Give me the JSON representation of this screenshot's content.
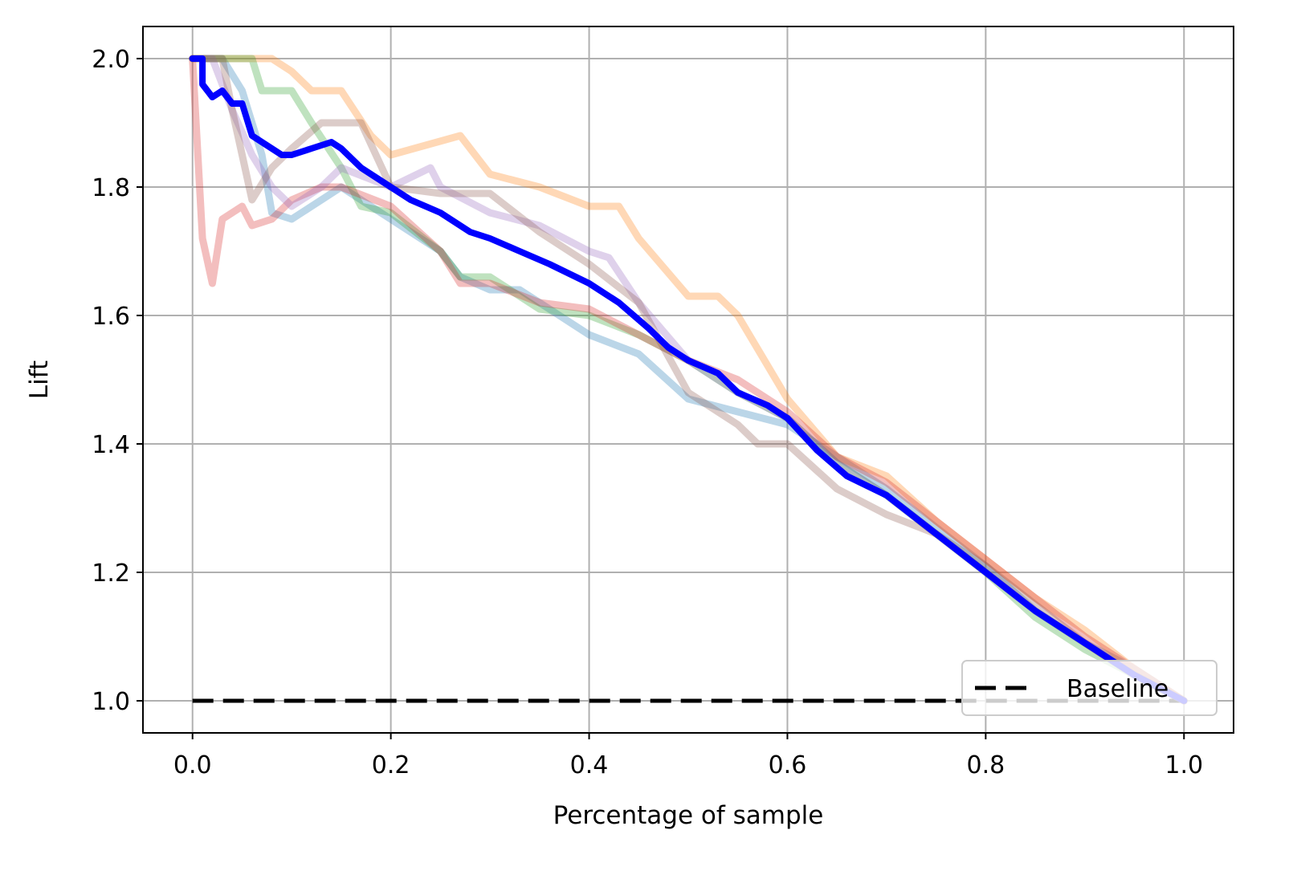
{
  "chart_data": {
    "type": "line",
    "title": "",
    "xlabel": "Percentage of sample",
    "ylabel": "Lift",
    "xlim": [
      -0.05,
      1.05
    ],
    "ylim": [
      0.95,
      2.05
    ],
    "xticks": [
      0.0,
      0.2,
      0.4,
      0.6,
      0.8,
      1.0
    ],
    "xtick_labels": [
      "0.0",
      "0.2",
      "0.4",
      "0.6",
      "0.8",
      "1.0"
    ],
    "yticks": [
      1.0,
      1.2,
      1.4,
      1.6,
      1.8,
      2.0
    ],
    "ytick_labels": [
      "1.0",
      "1.2",
      "1.4",
      "1.6",
      "1.8",
      "2.0"
    ],
    "grid": true,
    "legend": {
      "position": "lower right",
      "entries": [
        "Baseline"
      ]
    },
    "series": [
      {
        "name": "Baseline",
        "color": "#000000",
        "style": "dashed",
        "points": [
          [
            0.0,
            1.0
          ],
          [
            1.0,
            1.0
          ]
        ]
      },
      {
        "color": "#1f77b4",
        "opacity": 0.3,
        "points": [
          [
            0.0,
            2.0
          ],
          [
            0.03,
            2.0
          ],
          [
            0.05,
            1.95
          ],
          [
            0.07,
            1.85
          ],
          [
            0.08,
            1.76
          ],
          [
            0.1,
            1.75
          ],
          [
            0.12,
            1.77
          ],
          [
            0.15,
            1.8
          ],
          [
            0.2,
            1.75
          ],
          [
            0.25,
            1.7
          ],
          [
            0.27,
            1.66
          ],
          [
            0.3,
            1.64
          ],
          [
            0.33,
            1.64
          ],
          [
            0.37,
            1.6
          ],
          [
            0.4,
            1.57
          ],
          [
            0.45,
            1.54
          ],
          [
            0.5,
            1.47
          ],
          [
            0.55,
            1.45
          ],
          [
            0.6,
            1.43
          ],
          [
            0.65,
            1.38
          ],
          [
            0.7,
            1.33
          ],
          [
            0.75,
            1.27
          ],
          [
            0.8,
            1.21
          ],
          [
            0.85,
            1.14
          ],
          [
            0.9,
            1.09
          ],
          [
            0.95,
            1.05
          ],
          [
            1.0,
            1.0
          ]
        ]
      },
      {
        "color": "#ff7f0e",
        "opacity": 0.3,
        "points": [
          [
            0.0,
            2.0
          ],
          [
            0.08,
            2.0
          ],
          [
            0.1,
            1.98
          ],
          [
            0.12,
            1.95
          ],
          [
            0.15,
            1.95
          ],
          [
            0.18,
            1.88
          ],
          [
            0.2,
            1.85
          ],
          [
            0.27,
            1.88
          ],
          [
            0.3,
            1.82
          ],
          [
            0.35,
            1.8
          ],
          [
            0.4,
            1.77
          ],
          [
            0.43,
            1.77
          ],
          [
            0.45,
            1.72
          ],
          [
            0.5,
            1.63
          ],
          [
            0.53,
            1.63
          ],
          [
            0.55,
            1.6
          ],
          [
            0.6,
            1.47
          ],
          [
            0.65,
            1.38
          ],
          [
            0.7,
            1.35
          ],
          [
            0.75,
            1.28
          ],
          [
            0.8,
            1.22
          ],
          [
            0.85,
            1.16
          ],
          [
            0.9,
            1.11
          ],
          [
            0.95,
            1.05
          ],
          [
            1.0,
            1.0
          ]
        ]
      },
      {
        "color": "#2ca02c",
        "opacity": 0.3,
        "points": [
          [
            0.0,
            2.0
          ],
          [
            0.06,
            2.0
          ],
          [
            0.07,
            1.95
          ],
          [
            0.1,
            1.95
          ],
          [
            0.12,
            1.9
          ],
          [
            0.15,
            1.83
          ],
          [
            0.17,
            1.77
          ],
          [
            0.2,
            1.76
          ],
          [
            0.25,
            1.7
          ],
          [
            0.27,
            1.66
          ],
          [
            0.3,
            1.66
          ],
          [
            0.35,
            1.61
          ],
          [
            0.4,
            1.6
          ],
          [
            0.45,
            1.57
          ],
          [
            0.5,
            1.53
          ],
          [
            0.55,
            1.48
          ],
          [
            0.6,
            1.44
          ],
          [
            0.65,
            1.37
          ],
          [
            0.7,
            1.32
          ],
          [
            0.75,
            1.26
          ],
          [
            0.8,
            1.2
          ],
          [
            0.85,
            1.13
          ],
          [
            0.9,
            1.08
          ],
          [
            0.95,
            1.04
          ],
          [
            1.0,
            1.0
          ]
        ]
      },
      {
        "color": "#d62728",
        "opacity": 0.3,
        "points": [
          [
            0.0,
            2.0
          ],
          [
            0.01,
            1.72
          ],
          [
            0.02,
            1.65
          ],
          [
            0.03,
            1.75
          ],
          [
            0.05,
            1.77
          ],
          [
            0.06,
            1.74
          ],
          [
            0.08,
            1.75
          ],
          [
            0.1,
            1.78
          ],
          [
            0.13,
            1.8
          ],
          [
            0.15,
            1.8
          ],
          [
            0.2,
            1.77
          ],
          [
            0.25,
            1.7
          ],
          [
            0.27,
            1.65
          ],
          [
            0.3,
            1.65
          ],
          [
            0.35,
            1.62
          ],
          [
            0.4,
            1.61
          ],
          [
            0.45,
            1.57
          ],
          [
            0.5,
            1.53
          ],
          [
            0.55,
            1.5
          ],
          [
            0.6,
            1.45
          ],
          [
            0.65,
            1.38
          ],
          [
            0.7,
            1.34
          ],
          [
            0.75,
            1.28
          ],
          [
            0.8,
            1.22
          ],
          [
            0.85,
            1.16
          ],
          [
            0.9,
            1.1
          ],
          [
            0.95,
            1.05
          ],
          [
            1.0,
            1.0
          ]
        ]
      },
      {
        "color": "#9467bd",
        "opacity": 0.3,
        "points": [
          [
            0.0,
            2.0
          ],
          [
            0.02,
            2.0
          ],
          [
            0.04,
            1.92
          ],
          [
            0.06,
            1.85
          ],
          [
            0.08,
            1.8
          ],
          [
            0.1,
            1.77
          ],
          [
            0.13,
            1.8
          ],
          [
            0.15,
            1.83
          ],
          [
            0.2,
            1.8
          ],
          [
            0.24,
            1.83
          ],
          [
            0.25,
            1.8
          ],
          [
            0.3,
            1.76
          ],
          [
            0.35,
            1.74
          ],
          [
            0.4,
            1.7
          ],
          [
            0.42,
            1.69
          ],
          [
            0.45,
            1.62
          ],
          [
            0.5,
            1.53
          ],
          [
            0.55,
            1.48
          ],
          [
            0.6,
            1.44
          ],
          [
            0.65,
            1.37
          ],
          [
            0.7,
            1.32
          ],
          [
            0.75,
            1.26
          ],
          [
            0.8,
            1.2
          ],
          [
            0.85,
            1.14
          ],
          [
            0.9,
            1.09
          ],
          [
            0.95,
            1.04
          ],
          [
            1.0,
            1.0
          ]
        ]
      },
      {
        "color": "#8c564b",
        "opacity": 0.3,
        "points": [
          [
            0.0,
            2.0
          ],
          [
            0.03,
            2.0
          ],
          [
            0.04,
            1.92
          ],
          [
            0.05,
            1.85
          ],
          [
            0.06,
            1.78
          ],
          [
            0.08,
            1.83
          ],
          [
            0.1,
            1.86
          ],
          [
            0.13,
            1.9
          ],
          [
            0.17,
            1.9
          ],
          [
            0.2,
            1.8
          ],
          [
            0.25,
            1.79
          ],
          [
            0.3,
            1.79
          ],
          [
            0.35,
            1.73
          ],
          [
            0.4,
            1.68
          ],
          [
            0.45,
            1.62
          ],
          [
            0.5,
            1.48
          ],
          [
            0.55,
            1.43
          ],
          [
            0.57,
            1.4
          ],
          [
            0.6,
            1.4
          ],
          [
            0.65,
            1.33
          ],
          [
            0.7,
            1.29
          ],
          [
            0.75,
            1.26
          ],
          [
            0.8,
            1.21
          ],
          [
            0.85,
            1.15
          ],
          [
            0.9,
            1.09
          ],
          [
            0.95,
            1.04
          ],
          [
            1.0,
            1.0
          ]
        ]
      },
      {
        "color": "#0000ff",
        "opacity": 1.0,
        "points": [
          [
            0.0,
            2.0
          ],
          [
            0.01,
            2.0
          ],
          [
            0.01,
            1.96
          ],
          [
            0.02,
            1.94
          ],
          [
            0.03,
            1.95
          ],
          [
            0.04,
            1.93
          ],
          [
            0.05,
            1.93
          ],
          [
            0.06,
            1.88
          ],
          [
            0.07,
            1.87
          ],
          [
            0.09,
            1.85
          ],
          [
            0.1,
            1.85
          ],
          [
            0.12,
            1.86
          ],
          [
            0.14,
            1.87
          ],
          [
            0.15,
            1.86
          ],
          [
            0.17,
            1.83
          ],
          [
            0.2,
            1.8
          ],
          [
            0.22,
            1.78
          ],
          [
            0.25,
            1.76
          ],
          [
            0.28,
            1.73
          ],
          [
            0.3,
            1.72
          ],
          [
            0.33,
            1.7
          ],
          [
            0.36,
            1.68
          ],
          [
            0.4,
            1.65
          ],
          [
            0.43,
            1.62
          ],
          [
            0.46,
            1.58
          ],
          [
            0.48,
            1.55
          ],
          [
            0.5,
            1.53
          ],
          [
            0.53,
            1.51
          ],
          [
            0.55,
            1.48
          ],
          [
            0.58,
            1.46
          ],
          [
            0.6,
            1.44
          ],
          [
            0.63,
            1.39
          ],
          [
            0.66,
            1.35
          ],
          [
            0.7,
            1.32
          ],
          [
            0.75,
            1.26
          ],
          [
            0.8,
            1.2
          ],
          [
            0.85,
            1.14
          ],
          [
            0.9,
            1.09
          ],
          [
            0.95,
            1.04
          ],
          [
            1.0,
            1.0
          ]
        ]
      }
    ]
  }
}
